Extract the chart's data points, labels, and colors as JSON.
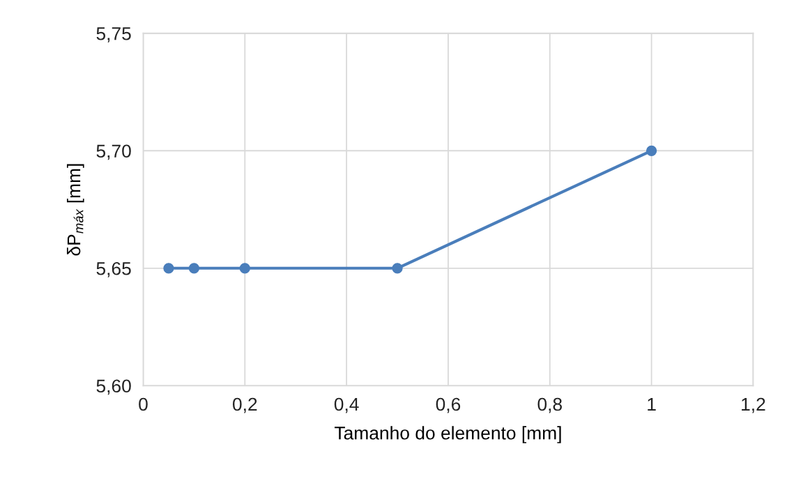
{
  "chart_data": {
    "type": "line",
    "xlabel": "Tamanho do elemento [mm]",
    "ylabel": "δP$_{máx}$ [mm]",
    "x": [
      0.05,
      0.1,
      0.2,
      0.5,
      1
    ],
    "series": [
      {
        "color": "#4a7ebb",
        "values": [
          5.65,
          5.65,
          5.65,
          5.65,
          5.7
        ]
      }
    ],
    "xlim": [
      0,
      1.2
    ],
    "xticks": [
      0,
      {
        "value": 0.2,
        "label": "0,2"
      },
      {
        "value": 0.4,
        "label": "0,4"
      },
      {
        "value": 0.6,
        "label": "0,6"
      },
      {
        "value": 0.8,
        "label": "0,8"
      },
      {
        "value": 1,
        "label": "1"
      },
      {
        "value": 1.2,
        "label": "1,2"
      }
    ],
    "ylim": [
      5.6,
      5.75
    ],
    "yticks": [
      {
        "value": 5.6,
        "label": "5,60"
      },
      {
        "value": 5.65,
        "label": "5,65"
      },
      {
        "value": 5.7,
        "label": "5,70"
      },
      {
        "value": 5.75,
        "label": "5,75"
      }
    ],
    "grid": true,
    "marker": "circle",
    "line_style": "solid",
    "legend": false
  }
}
